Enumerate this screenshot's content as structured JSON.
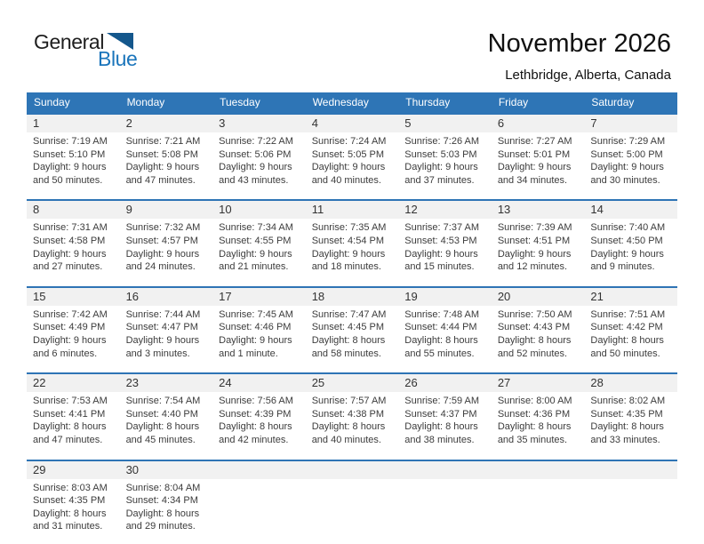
{
  "logo": {
    "general": "General",
    "blue": "Blue"
  },
  "header": {
    "title": "November 2026",
    "subtitle": "Lethbridge, Alberta, Canada"
  },
  "colors": {
    "header_blue": "#2E75B6",
    "row_line_blue": "#2E74B5",
    "date_band_gray": "#F1F1F1",
    "logo_blue": "#1B75BB"
  },
  "calendar": {
    "weekdays": [
      "Sunday",
      "Monday",
      "Tuesday",
      "Wednesday",
      "Thursday",
      "Friday",
      "Saturday"
    ],
    "weeks": [
      [
        {
          "day": "1",
          "sunrise": "Sunrise: 7:19 AM",
          "sunset": "Sunset: 5:10 PM",
          "daylight1": "Daylight: 9 hours",
          "daylight2": "and 50 minutes."
        },
        {
          "day": "2",
          "sunrise": "Sunrise: 7:21 AM",
          "sunset": "Sunset: 5:08 PM",
          "daylight1": "Daylight: 9 hours",
          "daylight2": "and 47 minutes."
        },
        {
          "day": "3",
          "sunrise": "Sunrise: 7:22 AM",
          "sunset": "Sunset: 5:06 PM",
          "daylight1": "Daylight: 9 hours",
          "daylight2": "and 43 minutes."
        },
        {
          "day": "4",
          "sunrise": "Sunrise: 7:24 AM",
          "sunset": "Sunset: 5:05 PM",
          "daylight1": "Daylight: 9 hours",
          "daylight2": "and 40 minutes."
        },
        {
          "day": "5",
          "sunrise": "Sunrise: 7:26 AM",
          "sunset": "Sunset: 5:03 PM",
          "daylight1": "Daylight: 9 hours",
          "daylight2": "and 37 minutes."
        },
        {
          "day": "6",
          "sunrise": "Sunrise: 7:27 AM",
          "sunset": "Sunset: 5:01 PM",
          "daylight1": "Daylight: 9 hours",
          "daylight2": "and 34 minutes."
        },
        {
          "day": "7",
          "sunrise": "Sunrise: 7:29 AM",
          "sunset": "Sunset: 5:00 PM",
          "daylight1": "Daylight: 9 hours",
          "daylight2": "and 30 minutes."
        }
      ],
      [
        {
          "day": "8",
          "sunrise": "Sunrise: 7:31 AM",
          "sunset": "Sunset: 4:58 PM",
          "daylight1": "Daylight: 9 hours",
          "daylight2": "and 27 minutes."
        },
        {
          "day": "9",
          "sunrise": "Sunrise: 7:32 AM",
          "sunset": "Sunset: 4:57 PM",
          "daylight1": "Daylight: 9 hours",
          "daylight2": "and 24 minutes."
        },
        {
          "day": "10",
          "sunrise": "Sunrise: 7:34 AM",
          "sunset": "Sunset: 4:55 PM",
          "daylight1": "Daylight: 9 hours",
          "daylight2": "and 21 minutes."
        },
        {
          "day": "11",
          "sunrise": "Sunrise: 7:35 AM",
          "sunset": "Sunset: 4:54 PM",
          "daylight1": "Daylight: 9 hours",
          "daylight2": "and 18 minutes."
        },
        {
          "day": "12",
          "sunrise": "Sunrise: 7:37 AM",
          "sunset": "Sunset: 4:53 PM",
          "daylight1": "Daylight: 9 hours",
          "daylight2": "and 15 minutes."
        },
        {
          "day": "13",
          "sunrise": "Sunrise: 7:39 AM",
          "sunset": "Sunset: 4:51 PM",
          "daylight1": "Daylight: 9 hours",
          "daylight2": "and 12 minutes."
        },
        {
          "day": "14",
          "sunrise": "Sunrise: 7:40 AM",
          "sunset": "Sunset: 4:50 PM",
          "daylight1": "Daylight: 9 hours",
          "daylight2": "and 9 minutes."
        }
      ],
      [
        {
          "day": "15",
          "sunrise": "Sunrise: 7:42 AM",
          "sunset": "Sunset: 4:49 PM",
          "daylight1": "Daylight: 9 hours",
          "daylight2": "and 6 minutes."
        },
        {
          "day": "16",
          "sunrise": "Sunrise: 7:44 AM",
          "sunset": "Sunset: 4:47 PM",
          "daylight1": "Daylight: 9 hours",
          "daylight2": "and 3 minutes."
        },
        {
          "day": "17",
          "sunrise": "Sunrise: 7:45 AM",
          "sunset": "Sunset: 4:46 PM",
          "daylight1": "Daylight: 9 hours",
          "daylight2": "and 1 minute."
        },
        {
          "day": "18",
          "sunrise": "Sunrise: 7:47 AM",
          "sunset": "Sunset: 4:45 PM",
          "daylight1": "Daylight: 8 hours",
          "daylight2": "and 58 minutes."
        },
        {
          "day": "19",
          "sunrise": "Sunrise: 7:48 AM",
          "sunset": "Sunset: 4:44 PM",
          "daylight1": "Daylight: 8 hours",
          "daylight2": "and 55 minutes."
        },
        {
          "day": "20",
          "sunrise": "Sunrise: 7:50 AM",
          "sunset": "Sunset: 4:43 PM",
          "daylight1": "Daylight: 8 hours",
          "daylight2": "and 52 minutes."
        },
        {
          "day": "21",
          "sunrise": "Sunrise: 7:51 AM",
          "sunset": "Sunset: 4:42 PM",
          "daylight1": "Daylight: 8 hours",
          "daylight2": "and 50 minutes."
        }
      ],
      [
        {
          "day": "22",
          "sunrise": "Sunrise: 7:53 AM",
          "sunset": "Sunset: 4:41 PM",
          "daylight1": "Daylight: 8 hours",
          "daylight2": "and 47 minutes."
        },
        {
          "day": "23",
          "sunrise": "Sunrise: 7:54 AM",
          "sunset": "Sunset: 4:40 PM",
          "daylight1": "Daylight: 8 hours",
          "daylight2": "and 45 minutes."
        },
        {
          "day": "24",
          "sunrise": "Sunrise: 7:56 AM",
          "sunset": "Sunset: 4:39 PM",
          "daylight1": "Daylight: 8 hours",
          "daylight2": "and 42 minutes."
        },
        {
          "day": "25",
          "sunrise": "Sunrise: 7:57 AM",
          "sunset": "Sunset: 4:38 PM",
          "daylight1": "Daylight: 8 hours",
          "daylight2": "and 40 minutes."
        },
        {
          "day": "26",
          "sunrise": "Sunrise: 7:59 AM",
          "sunset": "Sunset: 4:37 PM",
          "daylight1": "Daylight: 8 hours",
          "daylight2": "and 38 minutes."
        },
        {
          "day": "27",
          "sunrise": "Sunrise: 8:00 AM",
          "sunset": "Sunset: 4:36 PM",
          "daylight1": "Daylight: 8 hours",
          "daylight2": "and 35 minutes."
        },
        {
          "day": "28",
          "sunrise": "Sunrise: 8:02 AM",
          "sunset": "Sunset: 4:35 PM",
          "daylight1": "Daylight: 8 hours",
          "daylight2": "and 33 minutes."
        }
      ],
      [
        {
          "day": "29",
          "sunrise": "Sunrise: 8:03 AM",
          "sunset": "Sunset: 4:35 PM",
          "daylight1": "Daylight: 8 hours",
          "daylight2": "and 31 minutes."
        },
        {
          "day": "30",
          "sunrise": "Sunrise: 8:04 AM",
          "sunset": "Sunset: 4:34 PM",
          "daylight1": "Daylight: 8 hours",
          "daylight2": "and 29 minutes."
        },
        {
          "day": "",
          "sunrise": "",
          "sunset": "",
          "daylight1": "",
          "daylight2": ""
        },
        {
          "day": "",
          "sunrise": "",
          "sunset": "",
          "daylight1": "",
          "daylight2": ""
        },
        {
          "day": "",
          "sunrise": "",
          "sunset": "",
          "daylight1": "",
          "daylight2": ""
        },
        {
          "day": "",
          "sunrise": "",
          "sunset": "",
          "daylight1": "",
          "daylight2": ""
        },
        {
          "day": "",
          "sunrise": "",
          "sunset": "",
          "daylight1": "",
          "daylight2": ""
        }
      ]
    ]
  }
}
